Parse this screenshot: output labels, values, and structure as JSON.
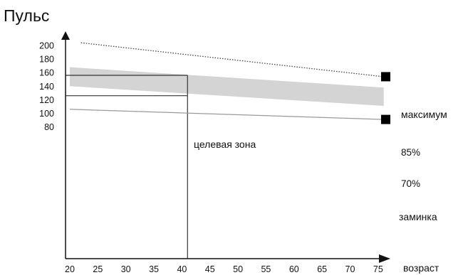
{
  "chart_data": {
    "type": "line",
    "ylabel": "Пульс",
    "xlabel": "возраст",
    "x_ticks": [
      20,
      25,
      30,
      35,
      40,
      45,
      50,
      55,
      60,
      65,
      70,
      75
    ],
    "y_ticks": [
      80,
      100,
      120,
      140,
      160,
      180,
      200
    ],
    "xlim": [
      20,
      78
    ],
    "ylim": [
      70,
      210
    ],
    "grid": false,
    "series": [
      {
        "name": "максимум",
        "style": "dotted",
        "points": [
          [
            22,
            204
          ],
          [
            76,
            154
          ]
        ]
      },
      {
        "name": "заминка",
        "style": "solid",
        "points": [
          [
            20,
            106
          ],
          [
            76,
            91
          ]
        ]
      }
    ],
    "band": {
      "name": "целевая зона",
      "upper": [
        [
          20,
          168
        ],
        [
          76,
          138
        ]
      ],
      "lower": [
        [
          20,
          140
        ],
        [
          76,
          111
        ]
      ],
      "upper_label": "85%",
      "lower_label": "70%",
      "color": "#d4d4d4"
    },
    "reference_lines": {
      "x": 41,
      "y_upper": 156,
      "y_lower": 126
    },
    "annotations": {
      "max_label": "максимум",
      "cooldown_label": "заминка",
      "zone_label": "целевая зона"
    }
  }
}
